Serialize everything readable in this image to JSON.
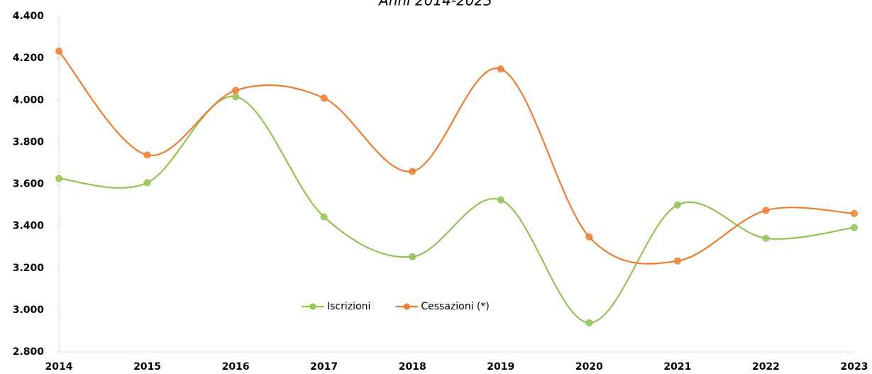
{
  "chart_data": {
    "type": "line",
    "subtitle": "Anni 2014-2023",
    "categories": [
      "2014",
      "2015",
      "2016",
      "2017",
      "2018",
      "2019",
      "2020",
      "2021",
      "2022",
      "2023"
    ],
    "series": [
      {
        "name": "Iscrizioni",
        "color": "#92c353",
        "values": [
          3627,
          3607,
          4017,
          3444,
          3254,
          3525,
          2939,
          3501,
          3342,
          3393
        ]
      },
      {
        "name": "Cessazioni (*)",
        "color": "#ed7d31",
        "values": [
          4234,
          3739,
          4047,
          4010,
          3661,
          4149,
          3349,
          3234,
          3475,
          3460
        ]
      }
    ],
    "ylim": [
      2800,
      4400
    ],
    "yticks": [
      {
        "value": 2800,
        "label": "2.800"
      },
      {
        "value": 3000,
        "label": "3.000"
      },
      {
        "value": 3200,
        "label": "3.200"
      },
      {
        "value": 3400,
        "label": "3.400"
      },
      {
        "value": 3600,
        "label": "3.600"
      },
      {
        "value": 3800,
        "label": "3.800"
      },
      {
        "value": 4000,
        "label": "4.000"
      },
      {
        "value": 4200,
        "label": "4.200"
      },
      {
        "value": 4400,
        "label": "4.400"
      }
    ],
    "grid": false,
    "smooth": true,
    "legend": "center"
  }
}
